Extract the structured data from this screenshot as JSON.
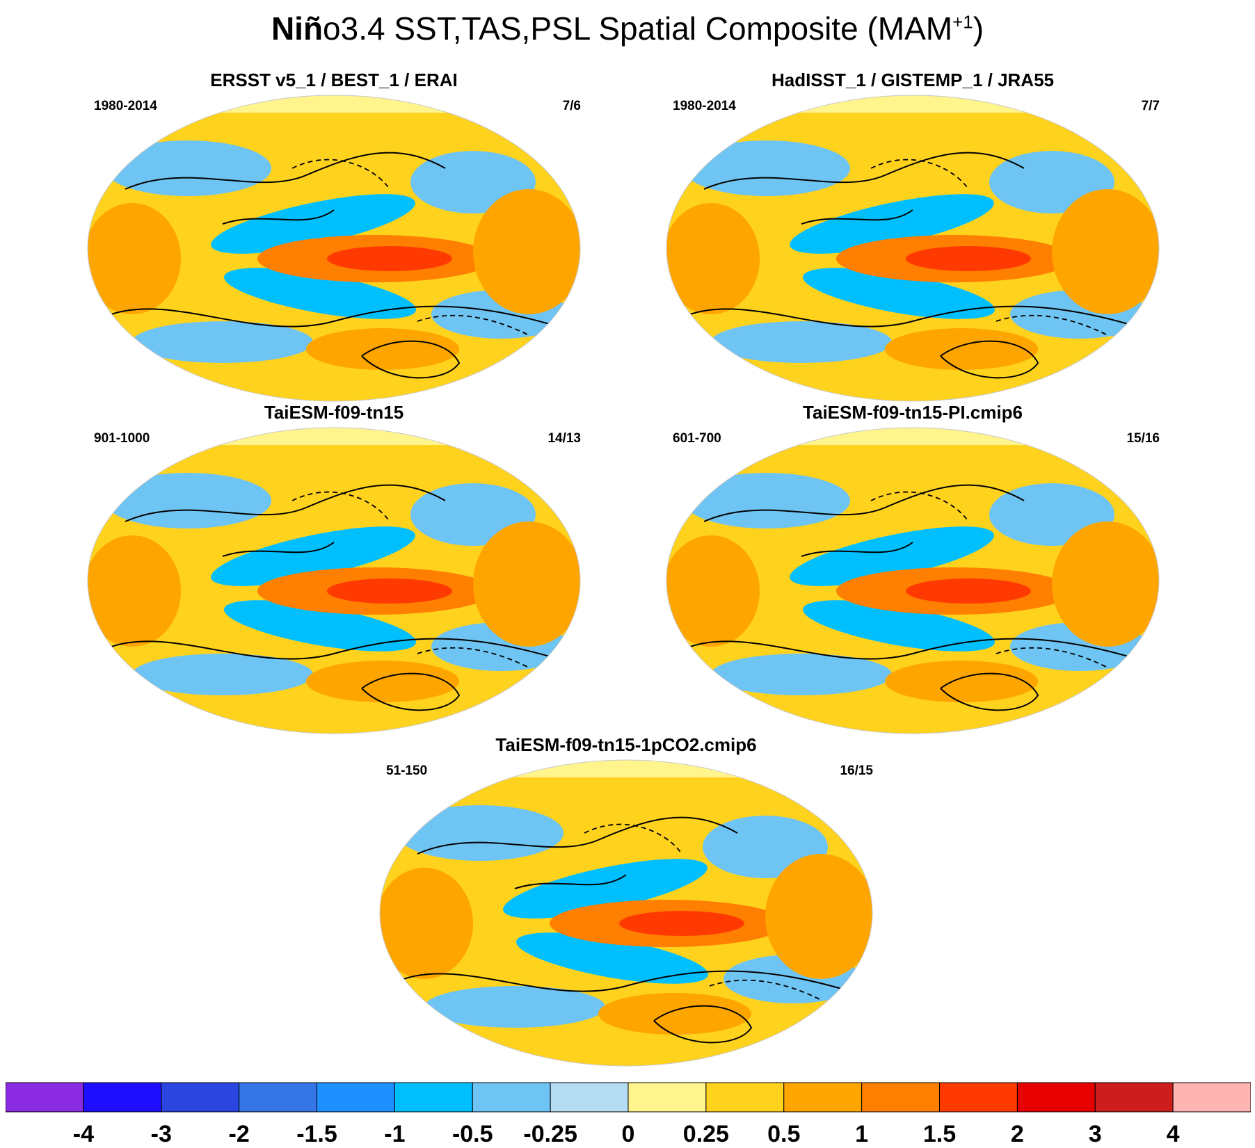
{
  "figure": {
    "title_prefix": "Niñ",
    "title_main": "o3.4 SST,TAS,PSL Spatial Composite (MAM",
    "title_sup": "+1",
    "title_end": ")"
  },
  "panels": [
    {
      "title": "ERSST v5_1 / BEST_1 / ERAI",
      "period": "1980-2014",
      "count": "7/6"
    },
    {
      "title": "HadISST_1 / GISTEMP_1 / JRA55",
      "period": "1980-2014",
      "count": "7/7"
    },
    {
      "title": "TaiESM-f09-tn15",
      "period": "901-1000",
      "count": "14/13"
    },
    {
      "title": "TaiESM-f09-tn15-PI.cmip6",
      "period": "601-700",
      "count": "15/16"
    },
    {
      "title": "TaiESM-f09-tn15-1pCO2.cmip6",
      "period": "51-150",
      "count": "16/15"
    }
  ],
  "colorbar": {
    "labels": [
      "-4",
      "-3",
      "-2",
      "-1.5",
      "-1",
      "-0.5",
      "-0.25",
      "0",
      "0.25",
      "0.5",
      "1",
      "1.5",
      "2",
      "3",
      "4"
    ],
    "colors": [
      "#8a2be2",
      "#1e0dff",
      "#2a45e0",
      "#3675e6",
      "#1e90ff",
      "#00bfff",
      "#6ec4f2",
      "#b4dcf2",
      "#fff58c",
      "#ffd21e",
      "#ffa500",
      "#ff7f00",
      "#ff3a00",
      "#e60000",
      "#cd1e1e",
      "#ffb4b4"
    ]
  }
}
